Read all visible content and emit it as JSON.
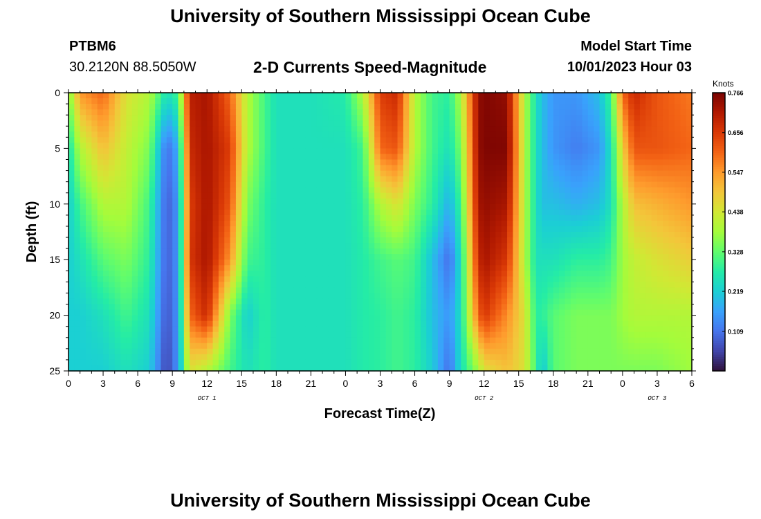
{
  "header": {
    "title": "University of Southern Mississippi Ocean Cube",
    "station_id": "PTBM6",
    "station_coords": "30.2120N  88.5050W",
    "plot_title": "2-D Currents Speed-Magnitude",
    "model_start_label": "Model Start Time",
    "model_start_time": "10/01/2023 Hour 03"
  },
  "footer": {
    "title": "University of Southern Mississippi Ocean Cube"
  },
  "chart_data": {
    "type": "heatmap",
    "title": "2-D Currents Speed-Magnitude",
    "xlabel": "Forecast Time(Z)",
    "ylabel": "Depth (ft)",
    "x_ticks": [
      "0",
      "3",
      "6",
      "9",
      "12",
      "15",
      "18",
      "21",
      "0",
      "3",
      "6",
      "9",
      "12",
      "15",
      "18",
      "21",
      "0",
      "3",
      "6"
    ],
    "x_range_hours": [
      0,
      54
    ],
    "date_labels": [
      {
        "label": "OCT 1",
        "hour": 12
      },
      {
        "label": "OCT 2",
        "hour": 36
      },
      {
        "label": "OCT 3",
        "hour": 51
      }
    ],
    "y_ticks": [
      0,
      5,
      10,
      15,
      20,
      25
    ],
    "ylim": [
      0,
      25
    ],
    "y_inverted": true,
    "colorbar": {
      "unit": "Knots",
      "ticks": [
        "0.766",
        "0.656",
        "0.547",
        "0.438",
        "0.328",
        "0.219",
        "0.109"
      ],
      "range": [
        0.0,
        0.766
      ],
      "colors": [
        "#30123b",
        "#4145ab",
        "#4675ed",
        "#39a2fc",
        "#1bcfd4",
        "#24eca6",
        "#61fc6c",
        "#a4fc3b",
        "#d1e834",
        "#f3c63a",
        "#fe9b2d",
        "#f36315",
        "#d93806",
        "#b11901",
        "#7a0402"
      ]
    },
    "time_profile_hours": [
      0,
      1,
      3,
      5,
      7,
      8.5,
      9.5,
      10.5,
      12,
      14,
      15.5,
      17,
      18,
      21,
      24,
      25.5,
      27,
      28.5,
      30,
      31.5,
      33,
      34,
      35.5,
      36,
      38,
      39.5,
      40.5,
      41,
      42,
      44,
      46,
      47,
      48,
      49,
      51,
      54
    ],
    "depth_levels_ft": [
      0,
      5,
      10,
      15,
      20,
      25
    ],
    "speed_knots": [
      [
        0.35,
        0.55,
        0.6,
        0.45,
        0.4,
        0.25,
        0.3,
        0.7,
        0.72,
        0.6,
        0.4,
        0.3,
        0.25,
        0.25,
        0.27,
        0.4,
        0.65,
        0.68,
        0.4,
        0.3,
        0.28,
        0.4,
        0.74,
        0.76,
        0.74,
        0.4,
        0.25,
        0.2,
        0.15,
        0.15,
        0.2,
        0.3,
        0.6,
        0.68,
        0.62,
        0.58
      ],
      [
        0.25,
        0.4,
        0.5,
        0.42,
        0.35,
        0.1,
        0.18,
        0.68,
        0.72,
        0.65,
        0.4,
        0.3,
        0.25,
        0.25,
        0.25,
        0.3,
        0.6,
        0.62,
        0.4,
        0.3,
        0.25,
        0.35,
        0.74,
        0.76,
        0.76,
        0.4,
        0.25,
        0.2,
        0.15,
        0.12,
        0.15,
        0.25,
        0.48,
        0.62,
        0.62,
        0.6
      ],
      [
        0.22,
        0.3,
        0.4,
        0.4,
        0.3,
        0.08,
        0.15,
        0.65,
        0.72,
        0.62,
        0.35,
        0.28,
        0.25,
        0.25,
        0.25,
        0.28,
        0.4,
        0.45,
        0.35,
        0.28,
        0.18,
        0.3,
        0.72,
        0.74,
        0.72,
        0.4,
        0.25,
        0.2,
        0.2,
        0.18,
        0.2,
        0.25,
        0.4,
        0.5,
        0.52,
        0.55
      ],
      [
        0.22,
        0.25,
        0.32,
        0.35,
        0.28,
        0.08,
        0.15,
        0.66,
        0.72,
        0.55,
        0.3,
        0.28,
        0.25,
        0.25,
        0.25,
        0.27,
        0.3,
        0.32,
        0.3,
        0.2,
        0.1,
        0.25,
        0.68,
        0.72,
        0.66,
        0.4,
        0.25,
        0.25,
        0.25,
        0.28,
        0.28,
        0.3,
        0.38,
        0.42,
        0.45,
        0.48
      ],
      [
        0.22,
        0.22,
        0.25,
        0.3,
        0.25,
        0.07,
        0.15,
        0.6,
        0.68,
        0.35,
        0.22,
        0.28,
        0.25,
        0.25,
        0.25,
        0.27,
        0.28,
        0.3,
        0.28,
        0.2,
        0.15,
        0.25,
        0.6,
        0.66,
        0.56,
        0.45,
        0.28,
        0.28,
        0.32,
        0.35,
        0.35,
        0.35,
        0.38,
        0.4,
        0.4,
        0.4
      ],
      [
        0.22,
        0.22,
        0.22,
        0.25,
        0.22,
        0.05,
        0.15,
        0.45,
        0.4,
        0.3,
        0.25,
        0.28,
        0.25,
        0.25,
        0.25,
        0.27,
        0.28,
        0.3,
        0.28,
        0.22,
        0.1,
        0.25,
        0.38,
        0.45,
        0.5,
        0.45,
        0.3,
        0.2,
        0.32,
        0.35,
        0.35,
        0.35,
        0.35,
        0.35,
        0.35,
        0.38
      ]
    ]
  }
}
